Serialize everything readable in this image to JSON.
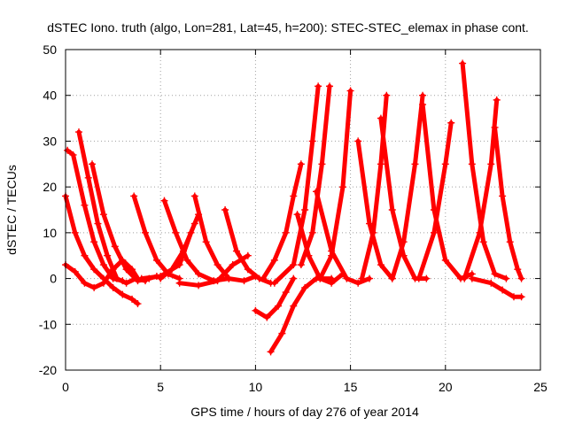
{
  "chart_data": {
    "type": "scatter",
    "title": "dSTEC Iono. truth (algo, Lon=281, Lat=45, h=200): STEC-STEC_elemax in phase cont.",
    "xlabel": "GPS time / hours of day 276 of year 2014",
    "ylabel": "dSTEC  / TECUs",
    "xlim": [
      0,
      25
    ],
    "ylim": [
      -20,
      50
    ],
    "xticks": [
      0,
      5,
      10,
      15,
      20,
      25
    ],
    "yticks": [
      -20,
      -10,
      0,
      10,
      20,
      30,
      40,
      50
    ],
    "grid": true,
    "legend": "none",
    "marker": "plus",
    "colors": {
      "series": "#ff0000",
      "grid": "#a0a0a0"
    },
    "series": [
      {
        "points": [
          [
            0.0,
            3.0
          ],
          [
            0.5,
            1.5
          ],
          [
            1.0,
            -1.0
          ],
          [
            1.5,
            -2.0
          ],
          [
            2.0,
            -1.0
          ],
          [
            2.5,
            2.0
          ],
          [
            3.0,
            4.0
          ],
          [
            3.5,
            2.0
          ],
          [
            3.8,
            0.0
          ]
        ]
      },
      {
        "points": [
          [
            0.0,
            18.0
          ],
          [
            0.5,
            10.0
          ],
          [
            1.0,
            5.0
          ],
          [
            1.5,
            2.0
          ],
          [
            2.0,
            0.0
          ],
          [
            2.5,
            -2.0
          ],
          [
            3.0,
            -3.5
          ],
          [
            3.5,
            -4.5
          ],
          [
            3.8,
            -5.5
          ]
        ]
      },
      {
        "points": [
          [
            0.1,
            28.0
          ],
          [
            0.4,
            27.0
          ],
          [
            1.0,
            16.0
          ],
          [
            1.5,
            8.0
          ],
          [
            2.0,
            3.0
          ],
          [
            2.5,
            0.0
          ],
          [
            3.0,
            -0.5
          ]
        ]
      },
      {
        "points": [
          [
            0.7,
            32.0
          ],
          [
            1.2,
            22.0
          ],
          [
            1.7,
            12.0
          ],
          [
            2.2,
            5.0
          ],
          [
            2.7,
            0.0
          ],
          [
            3.2,
            -1.0
          ],
          [
            3.7,
            0.0
          ],
          [
            4.2,
            -0.5
          ]
        ]
      },
      {
        "points": [
          [
            1.4,
            25.0
          ],
          [
            2.0,
            14.0
          ],
          [
            2.6,
            7.0
          ],
          [
            3.2,
            2.0
          ],
          [
            3.8,
            -0.5
          ],
          [
            4.4,
            0.0
          ],
          [
            4.8,
            0.5
          ]
        ]
      },
      {
        "points": [
          [
            3.6,
            18.0
          ],
          [
            4.2,
            10.0
          ],
          [
            4.8,
            4.0
          ],
          [
            5.4,
            1.0
          ],
          [
            6.0,
            0.0
          ]
        ]
      },
      {
        "points": [
          [
            5.0,
            0.0
          ],
          [
            5.6,
            2.0
          ],
          [
            6.2,
            6.0
          ],
          [
            6.8,
            12.0
          ],
          [
            7.0,
            14.0
          ]
        ]
      },
      {
        "points": [
          [
            5.2,
            17.0
          ],
          [
            5.8,
            10.0
          ],
          [
            6.4,
            4.0
          ],
          [
            7.0,
            1.0
          ],
          [
            7.8,
            -0.5
          ],
          [
            8.6,
            0.0
          ]
        ]
      },
      {
        "points": [
          [
            4.0,
            0.0
          ],
          [
            5.0,
            0.5
          ],
          [
            6.0,
            3.0
          ],
          [
            6.6,
            10.0
          ]
        ]
      },
      {
        "points": [
          [
            6.8,
            18.0
          ],
          [
            7.4,
            8.0
          ],
          [
            8.0,
            3.0
          ],
          [
            8.6,
            0.0
          ],
          [
            9.4,
            -0.5
          ],
          [
            10.0,
            0.5
          ]
        ]
      },
      {
        "points": [
          [
            6.0,
            -1.0
          ],
          [
            7.0,
            -1.5
          ],
          [
            8.0,
            -0.5
          ],
          [
            8.8,
            3.0
          ],
          [
            9.6,
            5.0
          ]
        ]
      },
      {
        "points": [
          [
            8.4,
            15.0
          ],
          [
            9.0,
            6.0
          ],
          [
            9.6,
            2.0
          ],
          [
            10.2,
            0.0
          ],
          [
            10.8,
            -1.0
          ]
        ]
      },
      {
        "points": [
          [
            10.0,
            -7.0
          ],
          [
            10.6,
            -8.5
          ],
          [
            11.2,
            -6.0
          ],
          [
            11.6,
            -3.0
          ],
          [
            12.0,
            0.0
          ]
        ]
      },
      {
        "points": [
          [
            10.8,
            -16.0
          ],
          [
            11.4,
            -12.0
          ],
          [
            12.0,
            -6.0
          ],
          [
            12.6,
            -2.0
          ],
          [
            13.2,
            0.0
          ],
          [
            14.0,
            0.0
          ]
        ]
      },
      {
        "points": [
          [
            10.4,
            0.0
          ],
          [
            11.0,
            4.0
          ],
          [
            11.6,
            10.0
          ],
          [
            12.0,
            18.0
          ],
          [
            12.4,
            25.0
          ]
        ]
      },
      {
        "points": [
          [
            12.2,
            14.0
          ],
          [
            12.8,
            5.0
          ],
          [
            13.4,
            0.0
          ],
          [
            14.0,
            -1.0
          ],
          [
            14.6,
            1.0
          ]
        ]
      },
      {
        "points": [
          [
            11.0,
            -1.0
          ],
          [
            12.0,
            3.0
          ],
          [
            12.6,
            15.0
          ],
          [
            13.0,
            30.0
          ],
          [
            13.3,
            42.0
          ]
        ]
      },
      {
        "points": [
          [
            12.4,
            3.0
          ],
          [
            13.0,
            10.0
          ],
          [
            13.5,
            25.0
          ],
          [
            13.9,
            42.0
          ]
        ]
      },
      {
        "points": [
          [
            13.2,
            19.0
          ],
          [
            14.0,
            6.0
          ],
          [
            14.8,
            0.0
          ],
          [
            15.4,
            -1.0
          ],
          [
            16.0,
            0.0
          ]
        ]
      },
      {
        "points": [
          [
            13.4,
            0.0
          ],
          [
            14.0,
            5.0
          ],
          [
            14.6,
            20.0
          ],
          [
            15.0,
            41.0
          ]
        ]
      },
      {
        "points": [
          [
            15.4,
            30.0
          ],
          [
            16.0,
            12.0
          ],
          [
            16.6,
            3.0
          ],
          [
            17.2,
            0.0
          ]
        ]
      },
      {
        "points": [
          [
            15.6,
            0.0
          ],
          [
            16.2,
            10.0
          ],
          [
            16.6,
            25.0
          ],
          [
            16.9,
            40.0
          ]
        ]
      },
      {
        "points": [
          [
            16.6,
            35.0
          ],
          [
            17.2,
            15.0
          ],
          [
            17.8,
            5.0
          ],
          [
            18.4,
            0.0
          ],
          [
            19.0,
            0.0
          ]
        ]
      },
      {
        "points": [
          [
            17.2,
            0.0
          ],
          [
            17.8,
            8.0
          ],
          [
            18.4,
            25.0
          ],
          [
            18.8,
            40.0
          ]
        ]
      },
      {
        "points": [
          [
            18.8,
            38.0
          ],
          [
            19.4,
            15.0
          ],
          [
            20.0,
            4.0
          ],
          [
            20.8,
            0.0
          ],
          [
            21.4,
            1.0
          ]
        ]
      },
      {
        "points": [
          [
            18.6,
            0.0
          ],
          [
            19.4,
            10.0
          ],
          [
            20.0,
            25.0
          ],
          [
            20.3,
            34.0
          ]
        ]
      },
      {
        "points": [
          [
            20.9,
            47.0
          ],
          [
            21.4,
            25.0
          ],
          [
            22.0,
            8.0
          ],
          [
            22.6,
            1.0
          ],
          [
            23.2,
            0.0
          ]
        ]
      },
      {
        "points": [
          [
            21.0,
            0.0
          ],
          [
            21.8,
            10.0
          ],
          [
            22.4,
            25.0
          ],
          [
            22.7,
            39.0
          ]
        ]
      },
      {
        "points": [
          [
            22.6,
            33.0
          ],
          [
            23.0,
            18.0
          ],
          [
            23.4,
            8.0
          ],
          [
            23.8,
            2.0
          ],
          [
            24.0,
            0.0
          ]
        ]
      },
      {
        "points": [
          [
            21.4,
            0.0
          ],
          [
            22.4,
            -1.0
          ],
          [
            23.0,
            -2.5
          ],
          [
            23.6,
            -4.0
          ],
          [
            24.0,
            -4.0
          ]
        ]
      }
    ]
  }
}
